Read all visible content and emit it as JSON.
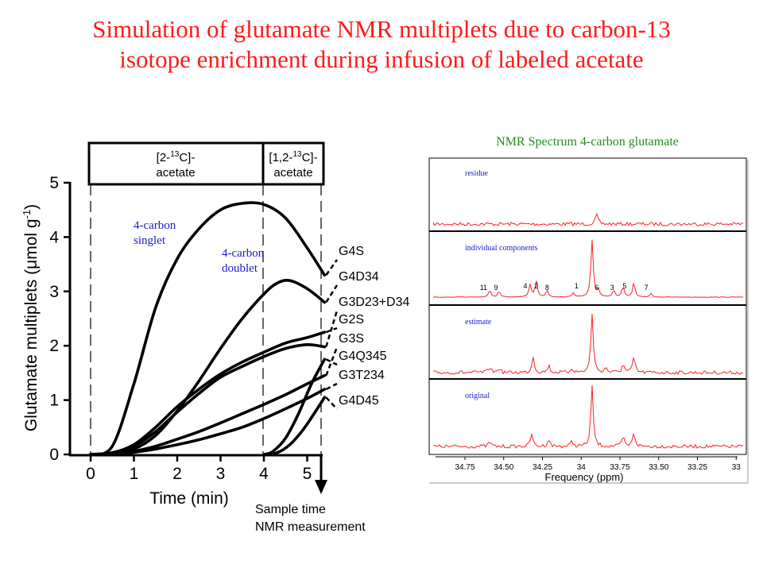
{
  "title": {
    "line1": "Simulation of glutamate NMR multiplets due to carbon-13",
    "line2": "isotope enrichment during infusion of labeled acetate"
  },
  "colors": {
    "title": "#ff1a1a",
    "annotation": "#1a1acc",
    "nmr_title": "#1f8f1f",
    "spectrum": "#ff2020",
    "panel_label": "#1a1acc"
  },
  "chart_data": [
    {
      "type": "line",
      "title": "",
      "xlabel": "Time (min)",
      "ylabel_parts": {
        "pre": "Glutamate multiplets (μmol g",
        "sup": "-1",
        "post": ")"
      },
      "xlim": [
        0,
        5.4
      ],
      "ylim": [
        0,
        5
      ],
      "xticks": [
        "0",
        "1",
        "2",
        "3",
        "4",
        "5"
      ],
      "yticks": [
        "0",
        "1",
        "2",
        "3",
        "4",
        "5"
      ],
      "infusion_phases": [
        {
          "label_pre": "[2-",
          "label_sup": "13",
          "label_post": "C]-",
          "label_line2": "acetate",
          "x_start": 0,
          "x_end": 4
        },
        {
          "label_pre": "[1,2-",
          "label_sup": "13",
          "label_post": "C]-",
          "label_line2": "acetate",
          "x_start": 4,
          "x_end": 5.4
        }
      ],
      "sample_marker": {
        "x": 5.4,
        "label_line1": "Sample time",
        "label_line2": "NMR measurement"
      },
      "annotations": [
        {
          "line1": "4-carbon",
          "line2": "singlet"
        },
        {
          "line1": "4-carbon",
          "line2": "doublet"
        }
      ],
      "series": [
        {
          "name": "G4S",
          "x": [
            0,
            0.5,
            1.0,
            1.5,
            2.0,
            2.5,
            3.0,
            3.5,
            4.0,
            4.5,
            5.0,
            5.4
          ],
          "y": [
            0,
            0.15,
            1.3,
            2.7,
            3.6,
            4.15,
            4.5,
            4.62,
            4.6,
            4.35,
            3.8,
            3.3
          ]
        },
        {
          "name": "G4D34",
          "x": [
            0,
            0.5,
            1.0,
            1.5,
            2.0,
            2.5,
            3.0,
            3.5,
            4.0,
            4.3,
            4.6,
            5.0,
            5.4
          ],
          "y": [
            0,
            0.02,
            0.1,
            0.35,
            0.8,
            1.35,
            1.95,
            2.5,
            2.95,
            3.15,
            3.2,
            3.05,
            2.8
          ]
        },
        {
          "name": "G3D23+D34",
          "x": [
            0,
            0.5,
            1.0,
            1.5,
            2.0,
            2.5,
            3.0,
            3.5,
            4.0,
            4.5,
            5.0,
            5.4
          ],
          "y": [
            0,
            0.03,
            0.15,
            0.42,
            0.78,
            1.12,
            1.42,
            1.62,
            1.8,
            1.95,
            2.02,
            1.98
          ]
        },
        {
          "name": "G2S",
          "x": [
            0,
            0.5,
            1.0,
            1.5,
            2.0,
            2.5,
            3.0,
            3.5,
            4.0,
            4.5,
            5.0,
            5.4
          ],
          "y": [
            0,
            0.03,
            0.18,
            0.5,
            0.88,
            1.2,
            1.48,
            1.7,
            1.88,
            2.05,
            2.15,
            2.25
          ]
        },
        {
          "name": "G3S",
          "x": [
            0,
            0.5,
            1.0,
            1.5,
            2.0,
            2.5,
            3.0,
            3.5,
            4.0,
            4.5,
            5.0,
            5.4
          ],
          "y": [
            0,
            0.01,
            0.06,
            0.15,
            0.28,
            0.42,
            0.58,
            0.75,
            0.92,
            1.1,
            1.3,
            1.45
          ]
        },
        {
          "name": "G4Q345",
          "x": [
            4.0,
            4.2,
            4.5,
            4.8,
            5.1,
            5.4
          ],
          "y": [
            0,
            0.05,
            0.3,
            0.75,
            1.3,
            1.75
          ]
        },
        {
          "name": "G3T234",
          "x": [
            0,
            0.5,
            1.0,
            1.5,
            2.0,
            2.5,
            3.0,
            3.5,
            4.0,
            4.5,
            5.0,
            5.4
          ],
          "y": [
            0,
            0.0,
            0.04,
            0.1,
            0.18,
            0.27,
            0.38,
            0.5,
            0.66,
            0.84,
            1.03,
            1.2
          ]
        },
        {
          "name": "G4D45",
          "x": [
            4.0,
            4.3,
            4.6,
            4.9,
            5.2,
            5.4
          ],
          "y": [
            0,
            0.03,
            0.18,
            0.45,
            0.8,
            1.05
          ]
        }
      ]
    },
    {
      "type": "line",
      "title": "NMR Spectrum 4-carbon glutamate",
      "xlabel": "Frequency (ppm)",
      "xticks": [
        "34.75",
        "34.50",
        "34.25",
        "34",
        "33.75",
        "33.50",
        "33.25",
        "33"
      ],
      "panels": [
        {
          "label": "residue",
          "peaks": [
            {
              "ppm": 33.9,
              "h": 0.2
            }
          ]
        },
        {
          "label": "individual components",
          "peak_labels": [
            "11",
            "9",
            "4",
            "2",
            "8",
            "1",
            "6",
            "3",
            "5",
            "7"
          ],
          "peaks": [
            {
              "ppm": 34.59,
              "h": 0.12
            },
            {
              "ppm": 34.53,
              "h": 0.1
            },
            {
              "ppm": 34.33,
              "h": 0.22
            },
            {
              "ppm": 34.29,
              "h": 0.28
            },
            {
              "ppm": 34.22,
              "h": 0.12
            },
            {
              "ppm": 34.05,
              "h": 0.08
            },
            {
              "ppm": 33.93,
              "h": 1.0
            },
            {
              "ppm": 33.89,
              "h": 0.12
            },
            {
              "ppm": 33.79,
              "h": 0.12
            },
            {
              "ppm": 33.73,
              "h": 0.18
            },
            {
              "ppm": 33.66,
              "h": 0.25
            },
            {
              "ppm": 33.55,
              "h": 0.06
            }
          ]
        },
        {
          "label": "estimate",
          "peaks": [
            {
              "ppm": 34.59,
              "h": 0.1
            },
            {
              "ppm": 34.53,
              "h": 0.08
            },
            {
              "ppm": 34.31,
              "h": 0.28
            },
            {
              "ppm": 34.21,
              "h": 0.12
            },
            {
              "ppm": 34.06,
              "h": 0.08
            },
            {
              "ppm": 33.93,
              "h": 1.0
            },
            {
              "ppm": 33.84,
              "h": 0.08
            },
            {
              "ppm": 33.73,
              "h": 0.14
            },
            {
              "ppm": 33.66,
              "h": 0.26
            }
          ]
        },
        {
          "label": "original",
          "peaks": [
            {
              "ppm": 34.59,
              "h": 0.08
            },
            {
              "ppm": 34.32,
              "h": 0.22
            },
            {
              "ppm": 34.21,
              "h": 0.12
            },
            {
              "ppm": 34.06,
              "h": 0.08
            },
            {
              "ppm": 33.93,
              "h": 1.0
            },
            {
              "ppm": 33.73,
              "h": 0.16
            },
            {
              "ppm": 33.66,
              "h": 0.24
            }
          ]
        }
      ]
    }
  ]
}
